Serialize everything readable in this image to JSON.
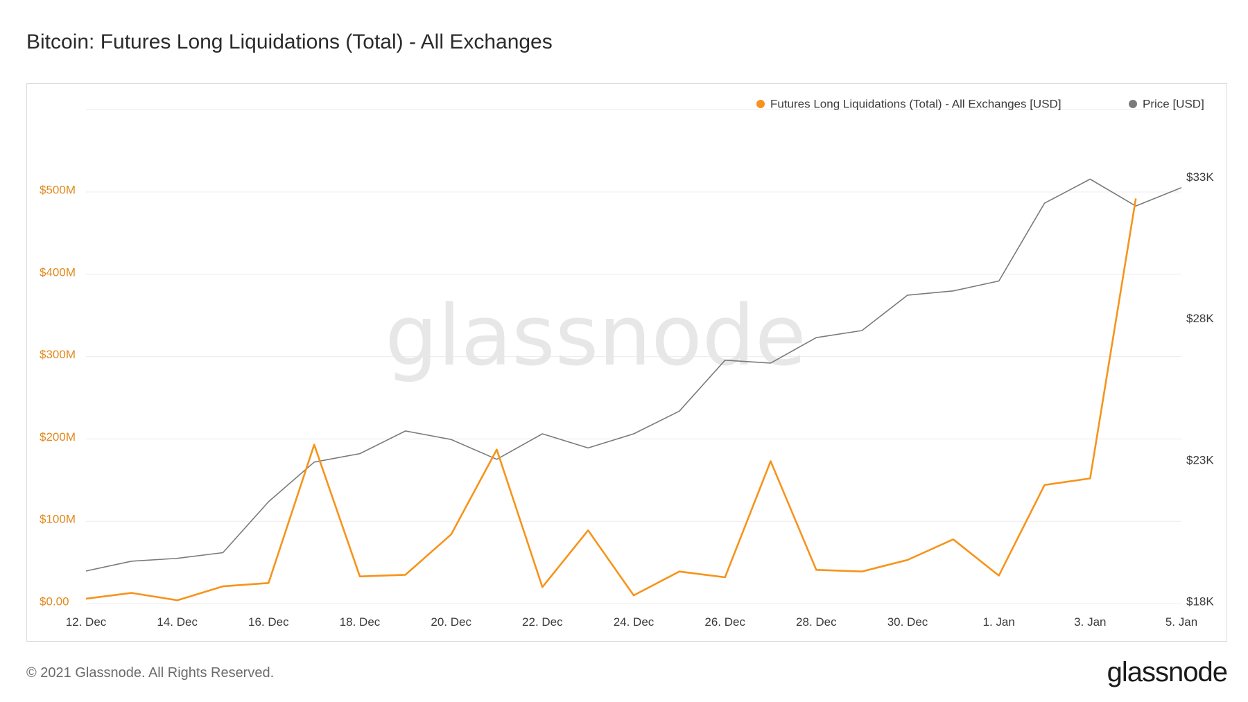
{
  "title": "Bitcoin: Futures Long Liquidations (Total) - All Exchanges",
  "footer": {
    "copyright": "© 2021 Glassnode. All Rights Reserved.",
    "logo_text": "glassnode"
  },
  "watermark": "glassnode",
  "colors": {
    "liquidations": "#f7931a",
    "price": "#7a7a7a",
    "left_axis_text": "#e08a1e",
    "gridline": "#ececec"
  },
  "chart_data": {
    "type": "line",
    "title": "Bitcoin: Futures Long Liquidations (Total) - All Exchanges",
    "legend_position": "top-right",
    "grid": true,
    "x": [
      "2020-12-12",
      "2020-12-13",
      "2020-12-14",
      "2020-12-15",
      "2020-12-16",
      "2020-12-17",
      "2020-12-18",
      "2020-12-19",
      "2020-12-20",
      "2020-12-21",
      "2020-12-22",
      "2020-12-23",
      "2020-12-24",
      "2020-12-25",
      "2020-12-26",
      "2020-12-27",
      "2020-12-28",
      "2020-12-29",
      "2020-12-30",
      "2020-12-31",
      "2021-01-01",
      "2021-01-02",
      "2021-01-03",
      "2021-01-04",
      "2021-01-05"
    ],
    "x_ticks": [
      "12. Dec",
      "14. Dec",
      "16. Dec",
      "18. Dec",
      "20. Dec",
      "22. Dec",
      "24. Dec",
      "26. Dec",
      "28. Dec",
      "30. Dec",
      "1. Jan",
      "3. Jan",
      "5. Jan"
    ],
    "y_left": {
      "ticks": [
        "$0.00",
        "$100M",
        "$200M",
        "$300M",
        "$400M",
        "$500M"
      ],
      "range": [
        0,
        600000000
      ]
    },
    "y_right": {
      "ticks": [
        "$18K",
        "$23K",
        "$28K",
        "$33K"
      ],
      "range": [
        18000,
        33500
      ]
    },
    "series": [
      {
        "name": "Futures Long Liquidations (Total) - All Exchanges [USD]",
        "axis": "left",
        "values": [
          6000000,
          13000000,
          4000000,
          21000000,
          25000000,
          193000000,
          33000000,
          35000000,
          84000000,
          187000000,
          20000000,
          89000000,
          10000000,
          39000000,
          32000000,
          173000000,
          41000000,
          39000000,
          53000000,
          78000000,
          34000000,
          144000000,
          152000000,
          492000000,
          null
        ]
      },
      {
        "name": "Price [USD]",
        "axis": "right",
        "values": [
          19150,
          19500,
          19600,
          19800,
          21600,
          23000,
          23300,
          24100,
          23800,
          23100,
          24000,
          23500,
          24000,
          24800,
          26600,
          26500,
          27400,
          27650,
          28900,
          29050,
          29400,
          32150,
          33000,
          32050,
          32700
        ]
      }
    ]
  }
}
